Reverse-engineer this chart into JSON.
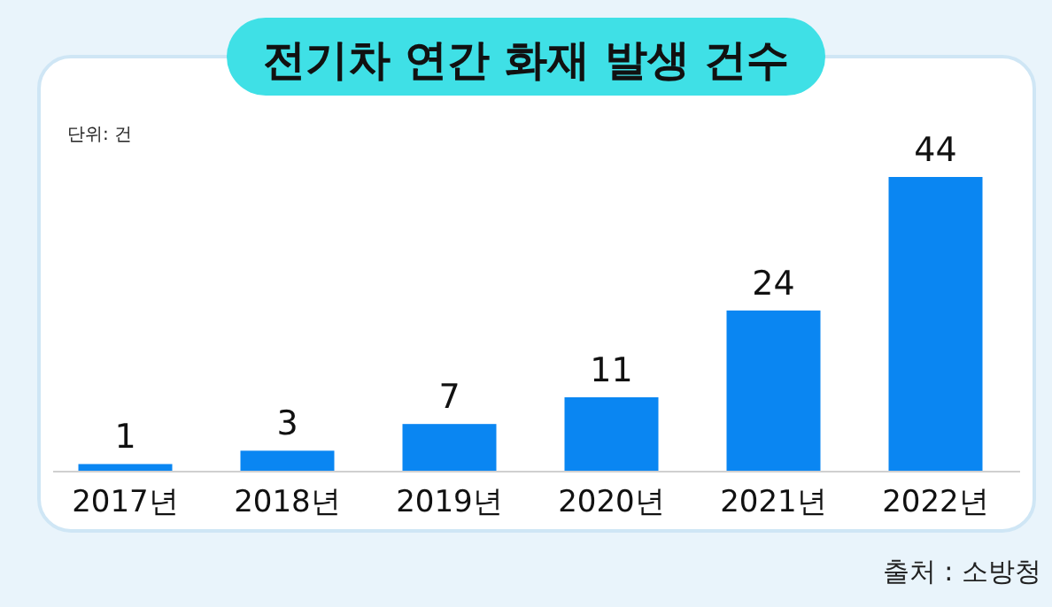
{
  "chart_data": {
    "type": "bar",
    "title": "전기차 연간 화재 발생 건수",
    "categories": [
      "2017년",
      "2018년",
      "2019년",
      "2020년",
      "2021년",
      "2022년"
    ],
    "values": [
      1,
      3,
      7,
      11,
      24,
      44
    ],
    "color": "#0a86f2",
    "data_labels": true,
    "annotations": [
      "단위: 건",
      "출처 : 소방청"
    ]
  }
}
